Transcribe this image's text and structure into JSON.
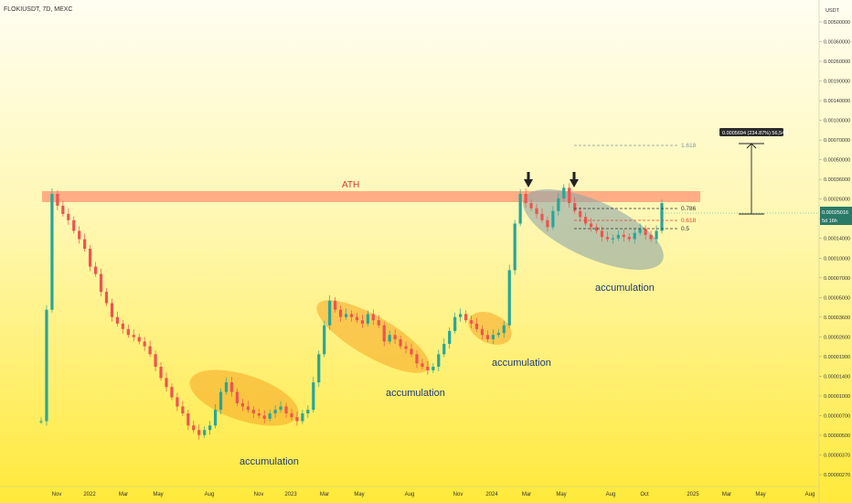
{
  "window": {
    "symbol_title": "FLOKIUSDT, 7D, MEXC"
  },
  "chart_data": {
    "type": "candlestick",
    "title": "FLOKIUSDT, 7D, MEXC",
    "y_scale": "log",
    "y_unit": "USDT",
    "y_ticks": [
      "0.00500000",
      "0.00360000",
      "0.00260000",
      "0.00190000",
      "0.00140000",
      "0.00100000",
      "0.00070000",
      "0.00050000",
      "0.00036000",
      "0.00026000",
      "0.00019000",
      "0.00014000",
      "0.00010000",
      "0.00007000",
      "0.00005000",
      "0.00003600",
      "0.00002600",
      "0.00001900",
      "0.00001400",
      "0.00001000",
      "0.00000700",
      "0.00000500",
      "0.00000370",
      "0.00000270"
    ],
    "x_ticks": [
      "Nov",
      "2022",
      "Mar",
      "May",
      "Aug",
      "Nov",
      "2023",
      "Mar",
      "May",
      "Aug",
      "Nov",
      "2024",
      "Mar",
      "May",
      "Aug",
      "Oct",
      "2025",
      "Mar",
      "May",
      "Aug"
    ],
    "last_price_label": "0.00025016",
    "last_price_countdown": "5d 16h",
    "ath_label": "ATH",
    "fib_levels": [
      {
        "label": "1.618",
        "color": "#7f9ba8"
      },
      {
        "label": "0.786",
        "color": "#333333"
      },
      {
        "label": "0.618",
        "color": "#e0443a"
      },
      {
        "label": "0.5",
        "color": "#333333"
      }
    ],
    "measure_label": "0.0005694 (234.87%) 56,544",
    "annotations": [
      "accumulation",
      "accumulation",
      "accumulation",
      "accumulation"
    ],
    "colors": {
      "up": "#26a69a",
      "down": "#ef5350",
      "ath_band": "#ffa07a",
      "ellipse_orange": "#f5a623",
      "ellipse_gray": "#8fa6a6",
      "text_blue": "#1f3a7a"
    },
    "weekly_close_path": [
      7.5e-06,
      4.5e-05,
      0.00029,
      0.00024,
      0.00021,
      0.00019,
      0.00016,
      0.00014,
      0.00012,
      9e-05,
      8e-05,
      6e-05,
      5e-05,
      4e-05,
      3.6e-05,
      3.3e-05,
      3e-05,
      2.9e-05,
      2.7e-05,
      2.5e-05,
      2.2e-05,
      1.8e-05,
      1.5e-05,
      1.3e-05,
      1.1e-05,
      9.5e-06,
      8.5e-06,
      7e-06,
      6.5e-06,
      6e-06,
      6.5e-06,
      7e-06,
      9e-06,
      1.2e-05,
      1.4e-05,
      1.2e-05,
      1e-05,
      9.5e-06,
      9e-06,
      8.5e-06,
      8.2e-06,
      7.8e-06,
      8.5e-06,
      9e-06,
      9.5e-06,
      8.5e-06,
      8e-06,
      7.5e-06,
      8.5e-06,
      9e-06,
      1.4e-05,
      2.2e-05,
      3.5e-05,
      5.2e-05,
      4.5e-05,
      4e-05,
      4.2e-05,
      4e-05,
      3.8e-05,
      3.6e-05,
      4.2e-05,
      3.8e-05,
      3.5e-05,
      2.7e-05,
      3e-05,
      2.8e-05,
      2.5e-05,
      2.4e-05,
      2.2e-05,
      1.9e-05,
      1.8e-05,
      1.7e-05,
      1.8e-05,
      2.2e-05,
      2.6e-05,
      3.2e-05,
      4e-05,
      4.2e-05,
      3.8e-05,
      3.6e-05,
      3.3e-05,
      3e-05,
      2.8e-05,
      3e-05,
      3.1e-05,
      3.5e-05,
      8.5e-05,
      0.00018,
      0.00029,
      0.00025,
      0.00023,
      0.00021,
      0.00019,
      0.00017,
      0.00022,
      0.00027,
      0.00032,
      0.00025,
      0.00022,
      0.0002,
      0.00018,
      0.00017,
      0.00016,
      0.000145,
      0.00014,
      0.000142,
      0.00015,
      0.000145,
      0.00014,
      0.000155,
      0.000165,
      0.00015,
      0.00014,
      0.00016,
      0.00025
    ]
  }
}
